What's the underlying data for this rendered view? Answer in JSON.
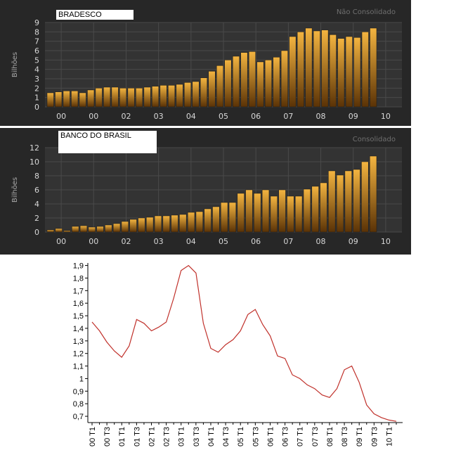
{
  "colors": {
    "bar_top": "#f3b440",
    "bar_bottom": "#5a3206",
    "line": "#c0302a",
    "panel_bg": "#272727",
    "plot_bg": "#333333",
    "grid": "#4a4a4a",
    "tick_text": "#d8d8d8"
  },
  "chart_data": [
    {
      "type": "bar",
      "title": "BRADESCO",
      "mode_label": "Não Consolidado",
      "ylabel": "Bilhões",
      "ylim": [
        0,
        9
      ],
      "yticks": [
        "0",
        "1",
        "2",
        "3",
        "4",
        "5",
        "6",
        "7",
        "8",
        "9"
      ],
      "xtick_labels": [
        "00",
        "00",
        "02",
        "03",
        "04",
        "05",
        "06",
        "07",
        "08",
        "09",
        "10"
      ],
      "values": [
        1.5,
        1.6,
        1.7,
        1.7,
        1.5,
        1.8,
        2.0,
        2.1,
        2.1,
        2.0,
        2.0,
        2.0,
        2.1,
        2.2,
        2.3,
        2.3,
        2.4,
        2.6,
        2.7,
        3.1,
        3.8,
        4.4,
        5.0,
        5.4,
        5.8,
        5.9,
        4.8,
        5.0,
        5.3,
        6.0,
        7.5,
        8.0,
        8.4,
        8.1,
        8.2,
        7.7,
        7.3,
        7.5,
        7.4,
        8.0,
        8.4
      ]
    },
    {
      "type": "bar",
      "title": "BANCO DO BRASIL",
      "mode_label": "Consolidado",
      "ylabel": "Bilhões",
      "ylim": [
        0,
        12
      ],
      "yticks": [
        "0",
        "2",
        "4",
        "6",
        "8",
        "10",
        "12"
      ],
      "xtick_labels": [
        "00",
        "00",
        "02",
        "03",
        "04",
        "05",
        "06",
        "07",
        "08",
        "09",
        "10"
      ],
      "values": [
        0.3,
        0.5,
        0.2,
        0.8,
        0.9,
        0.7,
        0.8,
        1.0,
        1.2,
        1.5,
        1.8,
        2.0,
        2.1,
        2.3,
        2.3,
        2.4,
        2.5,
        2.8,
        2.9,
        3.3,
        3.6,
        4.2,
        4.2,
        5.5,
        6.0,
        5.5,
        6.0,
        5.1,
        6.0,
        5.1,
        5.1,
        6.1,
        6.5,
        7.0,
        8.7,
        8.1,
        8.7,
        8.9,
        10.0,
        10.8
      ]
    },
    {
      "type": "line",
      "title": "",
      "ylim": [
        0.65,
        1.92
      ],
      "yticks": [
        "0,7",
        "0,8",
        "0,9",
        "1",
        "1,1",
        "1,2",
        "1,3",
        "1,4",
        "1,5",
        "1,6",
        "1,7",
        "1,8",
        "1,9"
      ],
      "xtick_labels": [
        "00 T1",
        "00 T3",
        "01 T1",
        "01 T3",
        "02 T1",
        "02 T3",
        "03 T1",
        "03 T3",
        "04 T1",
        "04 T3",
        "05 T1",
        "05 T3",
        "06 T1",
        "06 T3",
        "07 T1",
        "07 T3",
        "08 T1",
        "08 T3",
        "09 T1",
        "09 T3",
        "10 T1"
      ],
      "values": [
        1.45,
        1.38,
        1.29,
        1.22,
        1.17,
        1.26,
        1.47,
        1.44,
        1.38,
        1.41,
        1.45,
        1.64,
        1.86,
        1.9,
        1.84,
        1.44,
        1.24,
        1.21,
        1.27,
        1.31,
        1.38,
        1.51,
        1.55,
        1.43,
        1.34,
        1.18,
        1.16,
        1.03,
        1.0,
        0.95,
        0.92,
        0.87,
        0.85,
        0.92,
        1.07,
        1.1,
        0.97,
        0.79,
        0.72,
        0.69,
        0.67,
        0.66
      ]
    }
  ]
}
